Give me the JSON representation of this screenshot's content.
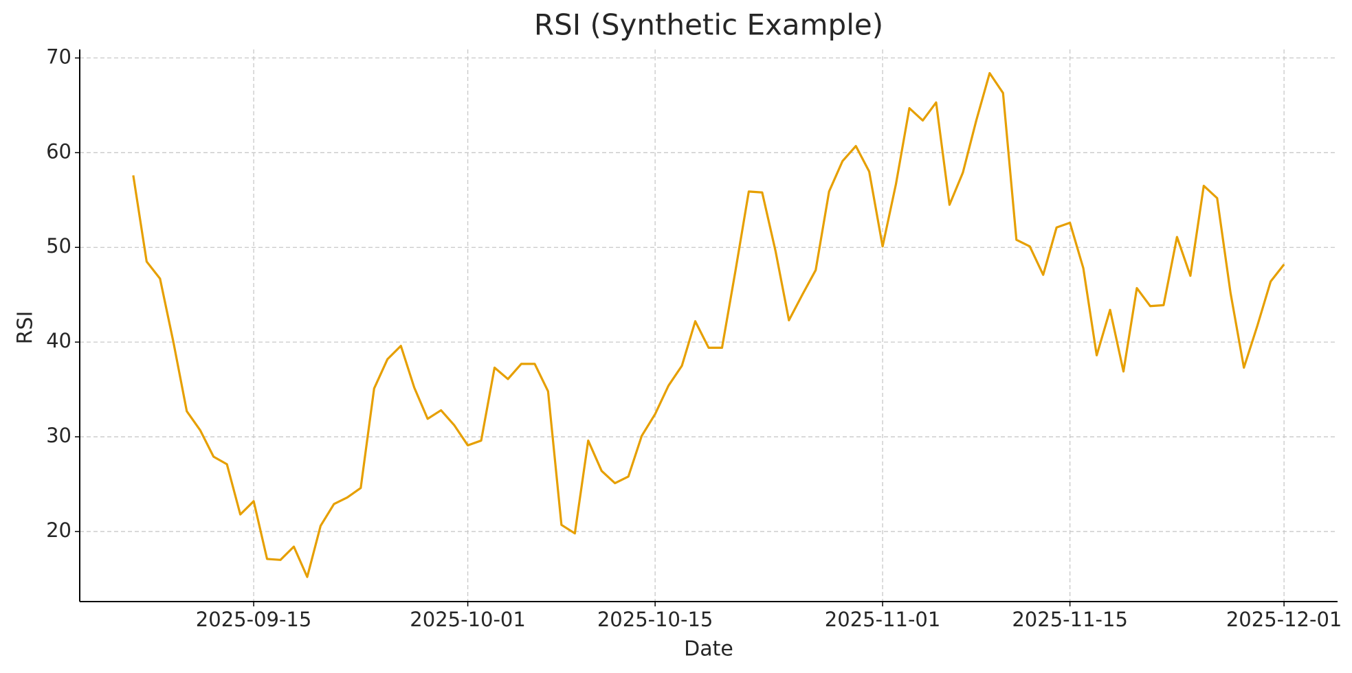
{
  "chart_data": {
    "type": "line",
    "title": "RSI (Synthetic Example)",
    "x_label": "Date",
    "y_label": "RSI",
    "x": [
      "2025-09-06",
      "2025-09-07",
      "2025-09-08",
      "2025-09-09",
      "2025-09-10",
      "2025-09-11",
      "2025-09-12",
      "2025-09-13",
      "2025-09-14",
      "2025-09-15",
      "2025-09-16",
      "2025-09-17",
      "2025-09-18",
      "2025-09-19",
      "2025-09-20",
      "2025-09-21",
      "2025-09-22",
      "2025-09-23",
      "2025-09-24",
      "2025-09-25",
      "2025-09-26",
      "2025-09-27",
      "2025-09-28",
      "2025-09-29",
      "2025-09-30",
      "2025-10-01",
      "2025-10-02",
      "2025-10-03",
      "2025-10-04",
      "2025-10-05",
      "2025-10-06",
      "2025-10-07",
      "2025-10-08",
      "2025-10-09",
      "2025-10-10",
      "2025-10-11",
      "2025-10-12",
      "2025-10-13",
      "2025-10-14",
      "2025-10-15",
      "2025-10-16",
      "2025-10-17",
      "2025-10-18",
      "2025-10-19",
      "2025-10-20",
      "2025-10-21",
      "2025-10-22",
      "2025-10-23",
      "2025-10-24",
      "2025-10-25",
      "2025-10-26",
      "2025-10-27",
      "2025-10-28",
      "2025-10-29",
      "2025-10-30",
      "2025-10-31",
      "2025-11-01",
      "2025-11-02",
      "2025-11-03",
      "2025-11-04",
      "2025-11-05",
      "2025-11-06",
      "2025-11-07",
      "2025-11-08",
      "2025-11-09",
      "2025-11-10",
      "2025-11-11",
      "2025-11-12",
      "2025-11-13",
      "2025-11-14",
      "2025-11-15",
      "2025-11-16",
      "2025-11-17",
      "2025-11-18",
      "2025-11-19",
      "2025-11-20",
      "2025-11-21",
      "2025-11-22",
      "2025-11-23",
      "2025-11-24",
      "2025-11-25",
      "2025-11-26",
      "2025-11-27",
      "2025-11-28",
      "2025-11-29",
      "2025-11-30",
      "2025-12-01"
    ],
    "series": [
      {
        "name": "RSI",
        "color": "#e69f00",
        "values": [
          57.6,
          48.5,
          46.7,
          40.0,
          32.7,
          30.7,
          27.9,
          27.1,
          21.8,
          23.2,
          17.1,
          17.0,
          18.4,
          15.2,
          20.6,
          22.9,
          23.6,
          24.6,
          35.1,
          38.2,
          39.6,
          35.2,
          31.9,
          32.8,
          31.2,
          29.1,
          29.6,
          37.3,
          36.1,
          37.7,
          37.7,
          34.8,
          20.7,
          19.8,
          29.6,
          26.4,
          25.1,
          25.8,
          30.1,
          32.4,
          35.4,
          37.5,
          42.2,
          39.4,
          39.4,
          47.5,
          55.9,
          55.8,
          49.6,
          42.3,
          45.0,
          47.6,
          55.9,
          59.1,
          60.7,
          58.0,
          50.1,
          56.7,
          64.7,
          63.4,
          65.3,
          54.5,
          57.9,
          63.4,
          68.4,
          66.3,
          50.8,
          50.1,
          47.1,
          52.1,
          52.6,
          47.8,
          38.6,
          43.4,
          36.9,
          45.7,
          43.8,
          43.9,
          51.1,
          47.0,
          56.5,
          55.2,
          45.2,
          37.3,
          41.7,
          46.4,
          48.2
        ]
      }
    ],
    "xlim": [
      "2025-09-02",
      "2025-12-05"
    ],
    "xticks": [
      "2025-09-15",
      "2025-10-01",
      "2025-10-15",
      "2025-11-01",
      "2025-11-15",
      "2025-12-01"
    ],
    "ylim": [
      12.6,
      70.9
    ],
    "yticks": [
      20,
      30,
      40,
      50,
      60,
      70
    ],
    "grid": true
  }
}
